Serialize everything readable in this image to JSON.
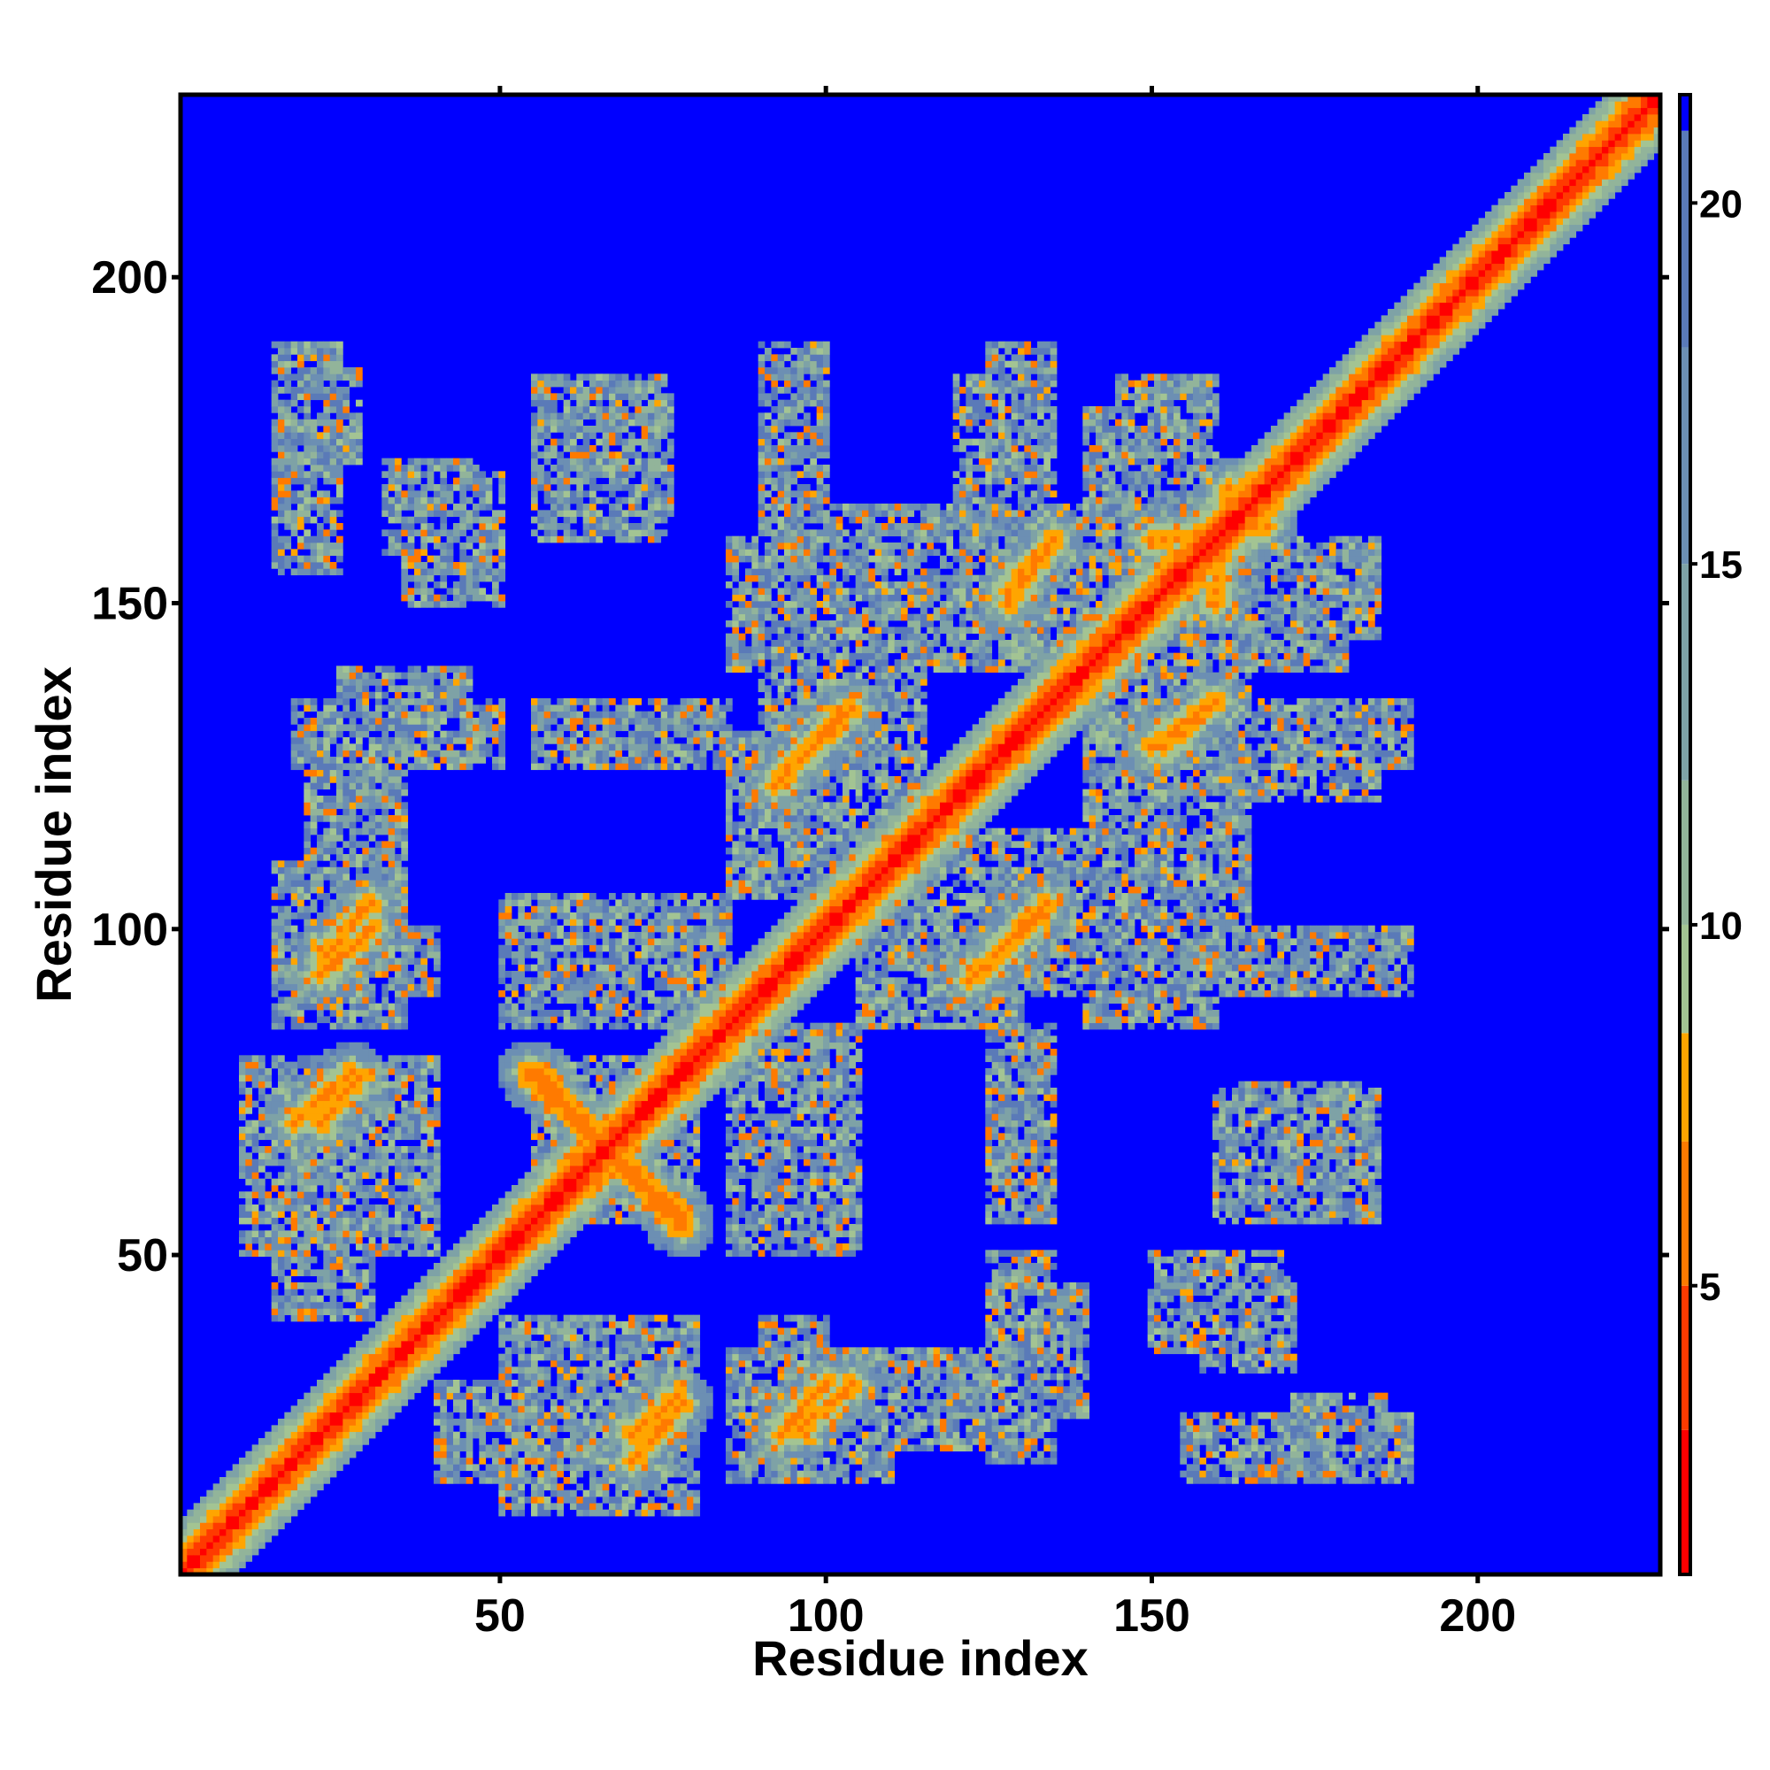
{
  "chart_data": {
    "type": "heatmap",
    "title": "",
    "xlabel": "Residue index",
    "ylabel": "Residue index",
    "xlim": [
      1,
      228
    ],
    "ylim": [
      1,
      228
    ],
    "x_ticks": [
      50,
      100,
      150,
      200
    ],
    "y_ticks": [
      50,
      100,
      150,
      200
    ],
    "colorbar": {
      "ticks": [
        5,
        10,
        15,
        20
      ],
      "range": [
        1,
        21.5
      ],
      "colors": [
        {
          "max": 3,
          "color": "#ff0000"
        },
        {
          "max": 5,
          "color": "#ff3a00"
        },
        {
          "max": 7,
          "color": "#ff7a00"
        },
        {
          "max": 8.5,
          "color": "#ffa500"
        },
        {
          "max": 10,
          "color": "#a3c493"
        },
        {
          "max": 12,
          "color": "#92b49a"
        },
        {
          "max": 15,
          "color": "#7ea2a6"
        },
        {
          "max": 18,
          "color": "#6c8fb3"
        },
        {
          "max": 21,
          "color": "#5a7ab8"
        },
        {
          "max": 99,
          "color": "#0000ff"
        }
      ]
    },
    "diagonal_band": {
      "halfwidth": 8
    },
    "contact_blocks": [
      {
        "x": [
          20,
          28
        ],
        "y": [
          172,
          186
        ]
      },
      {
        "x": [
          32,
          46
        ],
        "y": [
          158,
          172
        ]
      },
      {
        "x": [
          58,
          76
        ],
        "y": [
          164,
          182
        ]
      },
      {
        "x": [
          90,
          100
        ],
        "y": [
          160,
          185
        ]
      },
      {
        "x": [
          120,
          130
        ],
        "y": [
          160,
          185
        ]
      },
      {
        "x": [
          140,
          155
        ],
        "y": [
          158,
          180
        ]
      },
      {
        "x": [
          18,
          50
        ],
        "y": [
          125,
          135
        ]
      },
      {
        "x": [
          20,
          30
        ],
        "y": [
          95,
          130
        ]
      },
      {
        "x": [
          15,
          40
        ],
        "y": [
          90,
          100
        ]
      },
      {
        "x": [
          10,
          35
        ],
        "y": [
          65,
          80
        ]
      },
      {
        "x": [
          10,
          40
        ],
        "y": [
          50,
          65
        ]
      },
      {
        "x": [
          50,
          85
        ],
        "y": [
          85,
          105
        ]
      },
      {
        "x": [
          55,
          80
        ],
        "y": [
          55,
          80
        ]
      },
      {
        "x": [
          60,
          80
        ],
        "y": [
          20,
          40
        ]
      },
      {
        "x": [
          40,
          60
        ],
        "y": [
          15,
          30
        ]
      },
      {
        "x": [
          85,
          110
        ],
        "y": [
          15,
          35
        ]
      },
      {
        "x": [
          95,
          130
        ],
        "y": [
          20,
          35
        ]
      },
      {
        "x": [
          125,
          140
        ],
        "y": [
          25,
          45
        ]
      },
      {
        "x": [
          150,
          170
        ],
        "y": [
          35,
          50
        ]
      },
      {
        "x": [
          155,
          190
        ],
        "y": [
          15,
          25
        ]
      },
      {
        "x": [
          160,
          185
        ],
        "y": [
          55,
          75
        ]
      },
      {
        "x": [
          150,
          190
        ],
        "y": [
          90,
          100
        ]
      },
      {
        "x": [
          140,
          165
        ],
        "y": [
          100,
          130
        ]
      },
      {
        "x": [
          150,
          190
        ],
        "y": [
          125,
          135
        ]
      },
      {
        "x": [
          150,
          185
        ],
        "y": [
          145,
          160
        ]
      },
      {
        "x": [
          105,
          130
        ],
        "y": [
          85,
          110
        ]
      },
      {
        "x": [
          120,
          140
        ],
        "y": [
          90,
          115
        ]
      },
      {
        "x": [
          90,
          110
        ],
        "y": [
          120,
          140
        ]
      },
      {
        "x": [
          85,
          120
        ],
        "y": [
          140,
          160
        ]
      },
      {
        "x": [
          125,
          145
        ],
        "y": [
          140,
          165
        ]
      },
      {
        "x": [
          125,
          135
        ],
        "y": [
          55,
          85
        ]
      }
    ],
    "hotspot_lines": [
      {
        "from": [
          23,
          96
        ],
        "to": [
          30,
          104
        ],
        "value": 6
      },
      {
        "from": [
          18,
          70
        ],
        "to": [
          27,
          78
        ],
        "value": 6
      },
      {
        "from": [
          54,
          78
        ],
        "to": [
          78,
          55
        ],
        "value": 5
      },
      {
        "from": [
          70,
          22
        ],
        "to": [
          77,
          28
        ],
        "value": 6
      },
      {
        "from": [
          93,
          22
        ],
        "to": [
          100,
          30
        ],
        "value": 6
      },
      {
        "from": [
          92,
          122
        ],
        "to": [
          102,
          133
        ],
        "value": 6
      },
      {
        "from": [
          126,
          96
        ],
        "to": [
          134,
          104
        ],
        "value": 6
      },
      {
        "from": [
          152,
          128
        ],
        "to": [
          160,
          135
        ],
        "value": 6
      },
      {
        "from": [
          128,
          150
        ],
        "to": [
          135,
          160
        ],
        "value": 6
      },
      {
        "from": [
          150,
          160
        ],
        "to": [
          168,
          162
        ],
        "value": 6
      }
    ]
  }
}
